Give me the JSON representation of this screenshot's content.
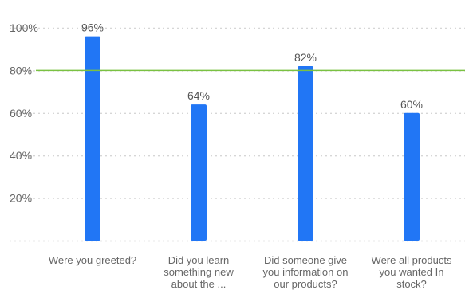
{
  "chart_data": {
    "type": "bar",
    "categories": [
      [
        "Were you greeted?"
      ],
      [
        "Did you learn",
        "something new",
        "about the ..."
      ],
      [
        "Did someone give",
        "you information on",
        "our products?"
      ],
      [
        "Were all products",
        "you wanted In",
        "stock?"
      ]
    ],
    "values": [
      96,
      64,
      82,
      60
    ],
    "value_labels": [
      "96%",
      "64%",
      "82%",
      "60%"
    ],
    "ytick_labels": [
      "20%",
      "40%",
      "60%",
      "80%",
      "100%"
    ],
    "yticks": [
      20,
      40,
      60,
      80,
      100
    ],
    "ylim": [
      0,
      100
    ],
    "target_line": 80,
    "grid": true,
    "title": "",
    "xlabel": "",
    "ylabel": "",
    "colors": {
      "bar": "#2176f5",
      "target": "#7ac142",
      "grid": "#d6d6d6",
      "text": "#666666",
      "value_text": "#555555"
    }
  }
}
